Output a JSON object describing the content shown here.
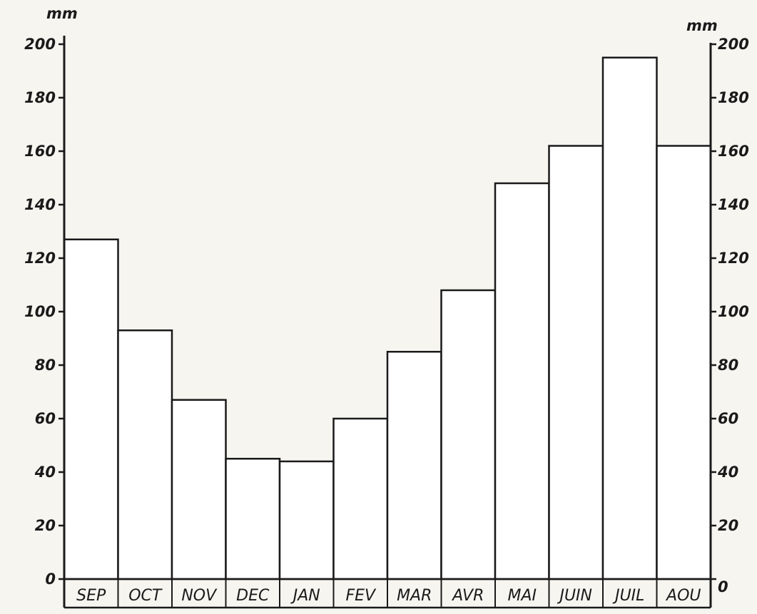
{
  "chart_data": {
    "type": "bar",
    "categories": [
      "SEP",
      "OCT",
      "NOV",
      "DEC",
      "JAN",
      "FEV",
      "MAR",
      "AVR",
      "MAI",
      "JUIN",
      "JUIL",
      "AOU"
    ],
    "values": [
      127,
      93,
      67,
      45,
      44,
      60,
      85,
      108,
      148,
      162,
      195,
      162
    ],
    "ylim": [
      0,
      200
    ],
    "yticks": [
      0,
      20,
      40,
      60,
      80,
      100,
      120,
      140,
      160,
      180,
      200
    ],
    "ytick_labels": [
      "0",
      "20",
      "40",
      "60",
      "80",
      "100",
      "120",
      "140",
      "160",
      "180",
      "200"
    ],
    "yunit_left": "mm",
    "yunit_right": "mm",
    "title": "",
    "xlabel": "",
    "ylabel": "",
    "grid": false,
    "legend": "none",
    "bar_fill": "#ffffff",
    "line_color": "#1a1a1a"
  }
}
